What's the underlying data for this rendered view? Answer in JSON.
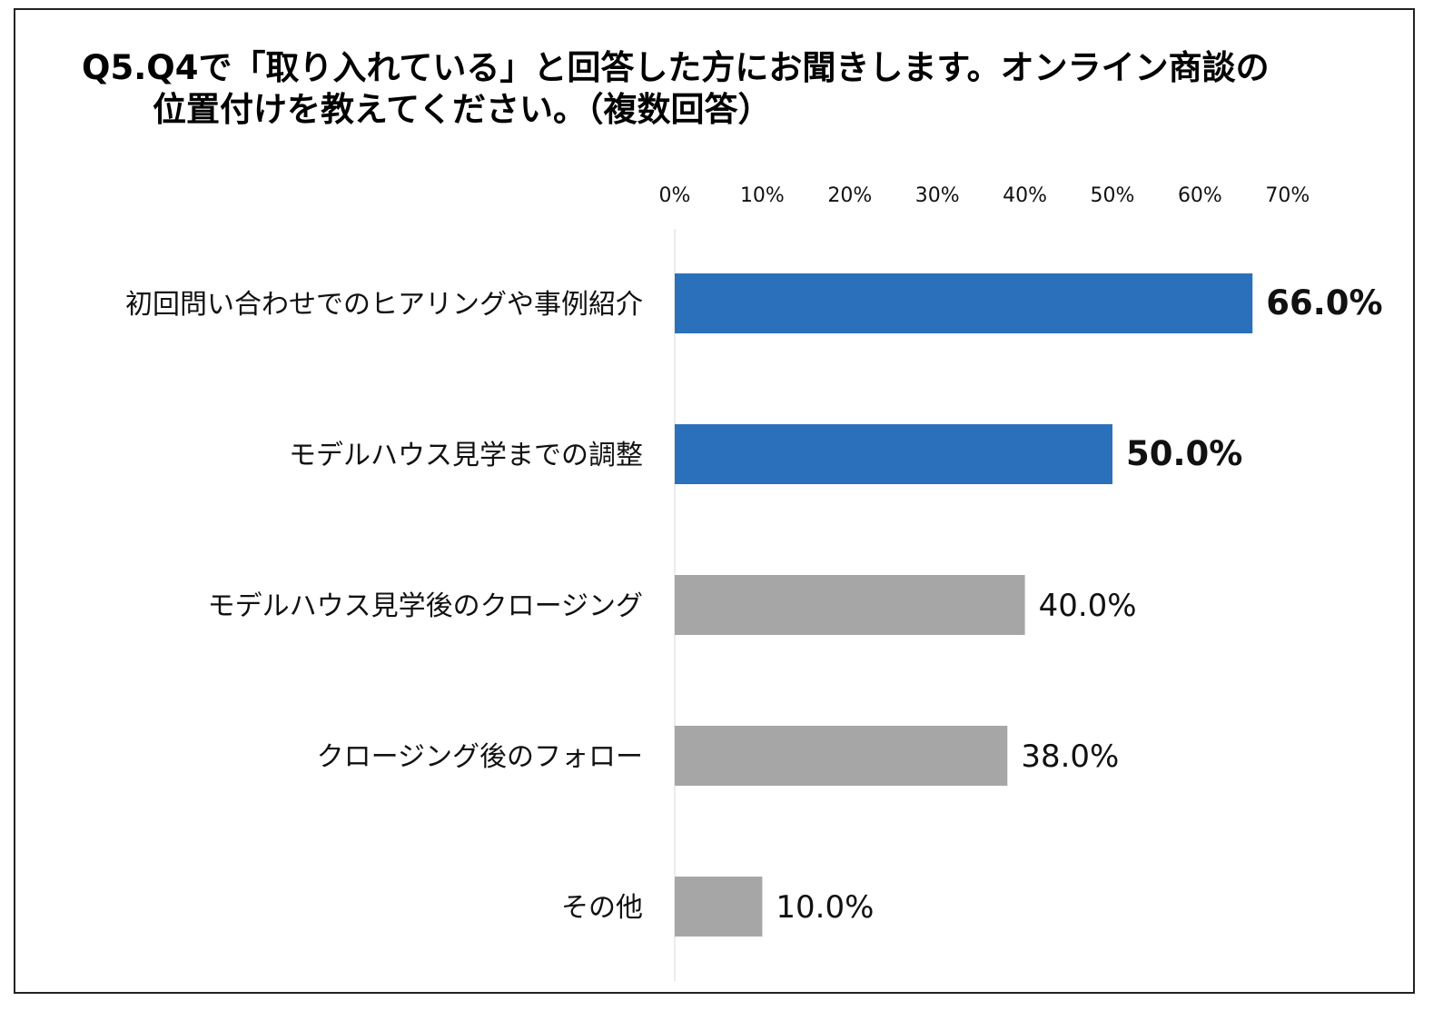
{
  "title": {
    "line1": "Q5.Q4で「取り入れている」と回答した方にお聞きします。オンライン商談の",
    "line2": "位置付けを教えてください。（複数回答）"
  },
  "chart_data": {
    "type": "bar",
    "orientation": "horizontal",
    "categories": [
      "初回問い合わせでのヒアリングや事例紹介",
      "モデルハウス見学までの調整",
      "モデルハウス見学後のクロージング",
      "クロージング後のフォロー",
      "その他"
    ],
    "values": [
      66.0,
      50.0,
      40.0,
      38.0,
      10.0
    ],
    "value_labels": [
      "66.0%",
      "50.0%",
      "40.0%",
      "38.0%",
      "10.0%"
    ],
    "highlighted": [
      true,
      true,
      false,
      false,
      false
    ],
    "xlim": [
      0,
      70
    ],
    "tick_values": [
      0,
      10,
      20,
      30,
      40,
      50,
      60,
      70
    ],
    "tick_labels": [
      "0%",
      "10%",
      "20%",
      "30%",
      "40%",
      "50%",
      "60%",
      "70%"
    ],
    "axis_position": "top",
    "grid": false,
    "colors": {
      "highlight": "#2a70ba",
      "default": "#a6a6a6"
    }
  }
}
